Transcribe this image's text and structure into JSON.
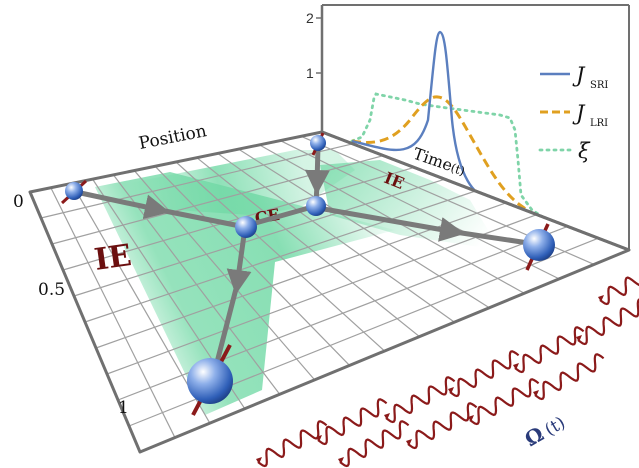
{
  "plane": {
    "axis_title": "Position",
    "ticks": [
      "0",
      "0.5",
      "1"
    ]
  },
  "regions": {
    "ie_left": "IE",
    "ce": "CE",
    "ie_right": "IE"
  },
  "inset": {
    "y_ticks": [
      "2",
      "1"
    ],
    "x_label_main": "Time",
    "x_label_paren": "(t)",
    "legend": [
      {
        "symbol": "J",
        "subscript": "SRI",
        "color": "#5b7fbf",
        "style": "solid"
      },
      {
        "symbol": "J",
        "subscript": "LRI",
        "color": "#e0a020",
        "style": "dashed"
      },
      {
        "symbol": "ξ",
        "subscript": "",
        "color": "#7fd4a8",
        "style": "dotted"
      }
    ]
  },
  "drive": {
    "label_main": "Ω",
    "label_paren": "(t)"
  },
  "colors": {
    "region_green": "#72d9a6",
    "grid": "#a0a0a0",
    "frame": "#707070",
    "wave": "#8b1a1a",
    "label_dark_red": "#6b0f0f",
    "arrow_gray": "#7a7a7a",
    "sphere_blue": "#2f5fb8"
  }
}
